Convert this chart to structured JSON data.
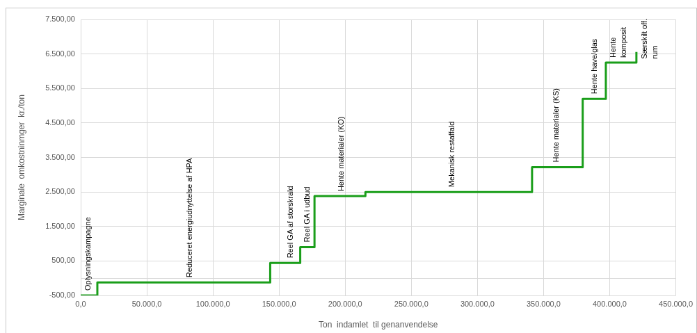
{
  "chart_data": {
    "type": "step",
    "xlabel": "Ton  indamlet  til genanvendelse",
    "ylabel": "Marginale  omkostninmger  kr./ton",
    "x": [
      0,
      12600,
      143300,
      166000,
      176800,
      215300,
      341300,
      379600,
      397100,
      420200
    ],
    "series": [
      {
        "color": "#1a9e1a",
        "values": [
          -500,
          -120,
          440,
          900,
          2380,
          2500,
          3220,
          5200,
          6250,
          6560
        ]
      }
    ],
    "xlim": [
      0,
      450000
    ],
    "xticks": [
      {
        "value": 0,
        "label": "0,0"
      },
      {
        "value": 50000,
        "label": "50.000,0"
      },
      {
        "value": 100000,
        "label": "100.000,0"
      },
      {
        "value": 150000,
        "label": "150.000,0"
      },
      {
        "value": 200000,
        "label": "200.000,0"
      },
      {
        "value": 250000,
        "label": "250.000,0"
      },
      {
        "value": 300000,
        "label": "300.000,0"
      },
      {
        "value": 350000,
        "label": "350.000,0"
      },
      {
        "value": 400000,
        "label": "400.000,0"
      },
      {
        "value": 450000,
        "label": "450.000,0"
      }
    ],
    "ylim": [
      -500,
      7500
    ],
    "yticks": [
      {
        "value": -500,
        "label": "-500,00"
      },
      {
        "value": 0,
        "label": null
      },
      {
        "value": 500,
        "label": "500,00"
      },
      {
        "value": 1500,
        "label": "1.500,00"
      },
      {
        "value": 2500,
        "label": "2.500,00"
      },
      {
        "value": 3500,
        "label": "3.500,00"
      },
      {
        "value": 4500,
        "label": "4.500,00"
      },
      {
        "value": 5500,
        "label": "5.500,00"
      },
      {
        "value": 6500,
        "label": "6.500,00"
      },
      {
        "value": 7500,
        "label": "7.500,00"
      }
    ],
    "grid": true,
    "line_style": "solid",
    "marker": "none",
    "annotations": [
      {
        "text": "Oplysningskampagne",
        "x": 6000,
        "y": -500
      },
      {
        "text": "Reduceret energiudnyttelse af HPA",
        "x": 82400,
        "y": -120
      },
      {
        "text": "Reel GA af storskrald",
        "x": 158600,
        "y": 440
      },
      {
        "text": "Reel GA i udbud",
        "x": 171200,
        "y": 900
      },
      {
        "text": "Hente materialer (KO)",
        "x": 197400,
        "y": 2380
      },
      {
        "text": "Mekanisk restaffald",
        "x": 281000,
        "y": 2500
      },
      {
        "text": "Hente materialer (KS)",
        "x": 359700,
        "y": 3220
      },
      {
        "text": "Hente have/glas",
        "x": 388500,
        "y": 5200
      },
      {
        "text": "Hente\nkomposit",
        "x": 406900,
        "y": 6250
      },
      {
        "text": "Særskilt off.\nrum",
        "x": 420200,
        "y": 6560
      }
    ]
  }
}
